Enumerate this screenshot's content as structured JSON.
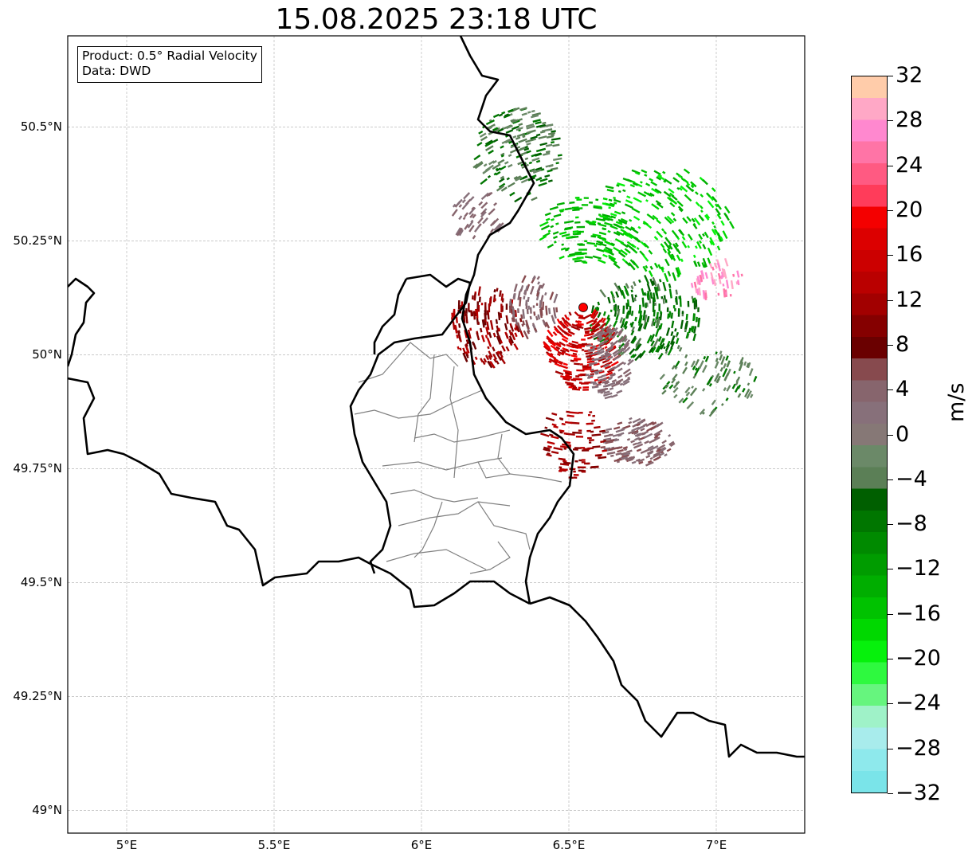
{
  "title": "15.08.2025 23:18 UTC",
  "info_box": {
    "product": "Product: 0.5° Radial Velocity",
    "data": "Data: DWD"
  },
  "map": {
    "lon_range": [
      4.8,
      7.3
    ],
    "lat_range": [
      48.95,
      50.7
    ],
    "gridlines": "dashed light grey",
    "lat_ticks": [
      {
        "value": 50.5,
        "label": "50.5°N"
      },
      {
        "value": 50.25,
        "label": "50.25°N"
      },
      {
        "value": 50.0,
        "label": "50°N"
      },
      {
        "value": 49.75,
        "label": "49.75°N"
      },
      {
        "value": 49.5,
        "label": "49.5°N"
      },
      {
        "value": 49.25,
        "label": "49.25°N"
      },
      {
        "value": 49.0,
        "label": "49°N"
      }
    ],
    "lon_ticks": [
      {
        "value": 5.0,
        "label": "5°E"
      },
      {
        "value": 5.5,
        "label": "5.5°E"
      },
      {
        "value": 6.0,
        "label": "6°E"
      },
      {
        "value": 6.5,
        "label": "6.5°E"
      },
      {
        "value": 7.0,
        "label": "7°E"
      }
    ],
    "radar_site": {
      "lon": 6.55,
      "lat": 50.11,
      "color": "#ff0000"
    },
    "country_border_color": "#000000",
    "canton_border_color": "#808080"
  },
  "colorbar": {
    "unit": "m/s",
    "min": -32,
    "max": 32,
    "tick_labels": [
      "32",
      "28",
      "24",
      "20",
      "16",
      "12",
      "8",
      "4",
      "0",
      "−4",
      "−8",
      "−12",
      "−16",
      "−20",
      "−24",
      "−28",
      "−32"
    ],
    "colors_bottom_to_top": [
      "#7ae4e9",
      "#8ee9ec",
      "#a8ecec",
      "#9ff2c8",
      "#66f57e",
      "#2ef93f",
      "#06f10c",
      "#00d800",
      "#00c200",
      "#00ae00",
      "#009c00",
      "#008a00",
      "#007600",
      "#005f00",
      "#5b7f56",
      "#6b8968",
      "#867876",
      "#87707a",
      "#87656d",
      "#874a4e",
      "#6a0000",
      "#850000",
      "#a20000",
      "#ba0000",
      "#cc0000",
      "#dc0000",
      "#f40000",
      "#ff3c5a",
      "#ff5a82",
      "#ff74a6",
      "#ff88cf",
      "#ffa8c6",
      "#ffccaa"
    ]
  }
}
